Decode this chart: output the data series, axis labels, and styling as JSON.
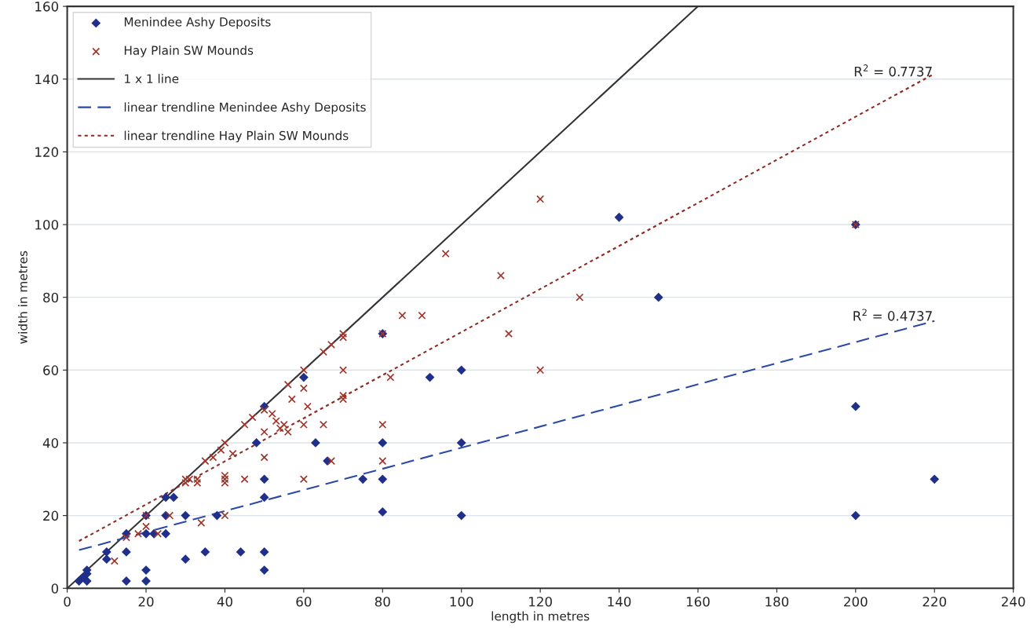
{
  "chart_data": {
    "type": "scatter",
    "xlabel": "length in metres",
    "ylabel": "width in metres",
    "xlim": [
      0,
      240
    ],
    "ylim": [
      0,
      160
    ],
    "xticks": [
      0,
      20,
      40,
      60,
      80,
      100,
      120,
      140,
      160,
      180,
      200,
      220,
      240
    ],
    "yticks": [
      0,
      20,
      40,
      60,
      80,
      100,
      120,
      140,
      160
    ],
    "grid": "y",
    "legend": "top left",
    "series": [
      {
        "name": "Menindee Ashy Deposits",
        "marker": "diamond",
        "color": "#1f2f8a",
        "x": [
          3,
          4,
          5,
          5,
          5,
          10,
          10,
          15,
          15,
          15,
          20,
          20,
          20,
          20,
          22,
          25,
          25,
          25,
          27,
          30,
          30,
          35,
          38,
          44,
          48,
          50,
          50,
          50,
          50,
          50,
          60,
          63,
          66,
          75,
          80,
          80,
          80,
          80,
          92,
          100,
          100,
          100,
          140,
          150,
          200,
          200,
          200,
          220
        ],
        "values": [
          2,
          3,
          2,
          4,
          5,
          8,
          10,
          2,
          10,
          15,
          2,
          5,
          15,
          20,
          15,
          15,
          20,
          25,
          25,
          8,
          20,
          10,
          20,
          10,
          40,
          5,
          10,
          25,
          30,
          50,
          58,
          40,
          35,
          30,
          21,
          30,
          40,
          70,
          58,
          20,
          40,
          60,
          102,
          80,
          20,
          50,
          100,
          30
        ]
      },
      {
        "name": "Hay Plain SW Mounds",
        "marker": "cross",
        "color": "#a0342a",
        "x": [
          12,
          15,
          18,
          20,
          20,
          23,
          26,
          30,
          30,
          31,
          33,
          33,
          34,
          35,
          37,
          39,
          40,
          40,
          40,
          40,
          40,
          42,
          45,
          45,
          47,
          50,
          50,
          50,
          52,
          53,
          54,
          55,
          56,
          57,
          56,
          60,
          60,
          60,
          60,
          61,
          65,
          65,
          67,
          67,
          70,
          70,
          70,
          70,
          70,
          80,
          80,
          80,
          82,
          85,
          90,
          96,
          110,
          112,
          120,
          120,
          130,
          200
        ],
        "values": [
          7.5,
          14,
          15,
          17,
          20,
          15,
          20,
          29,
          30,
          30,
          29,
          30,
          18,
          35,
          36,
          38,
          20,
          29,
          30,
          31,
          40,
          37,
          30,
          45,
          47,
          36,
          43,
          49,
          48,
          46,
          44,
          45,
          43,
          52,
          56,
          30,
          45,
          55,
          60,
          50,
          45,
          65,
          35,
          67,
          52,
          53,
          60,
          69,
          70,
          35,
          45,
          70,
          58,
          75,
          75,
          92,
          86,
          70,
          60,
          107,
          80,
          100
        ]
      },
      {
        "name": "1 x 1 line",
        "type": "line",
        "line_style": "solid",
        "color": "#333333",
        "x": [
          0,
          160
        ],
        "values": [
          0,
          160
        ]
      },
      {
        "name": "linear trendline Menindee Ashy Deposits",
        "type": "line",
        "line_style": "dashed",
        "color": "#2b4aa8",
        "x": [
          3,
          220
        ],
        "values": [
          10.5,
          73.5
        ]
      },
      {
        "name": "linear trendline Hay Plain SW Mounds",
        "type": "line",
        "line_style": "dotted",
        "color": "#8b2a20",
        "x": [
          3,
          220
        ],
        "values": [
          13,
          141.5
        ]
      }
    ],
    "annotations": [
      "R$^{2}$ = 0.7737",
      "R$^{2}$ = 0.4737"
    ]
  }
}
